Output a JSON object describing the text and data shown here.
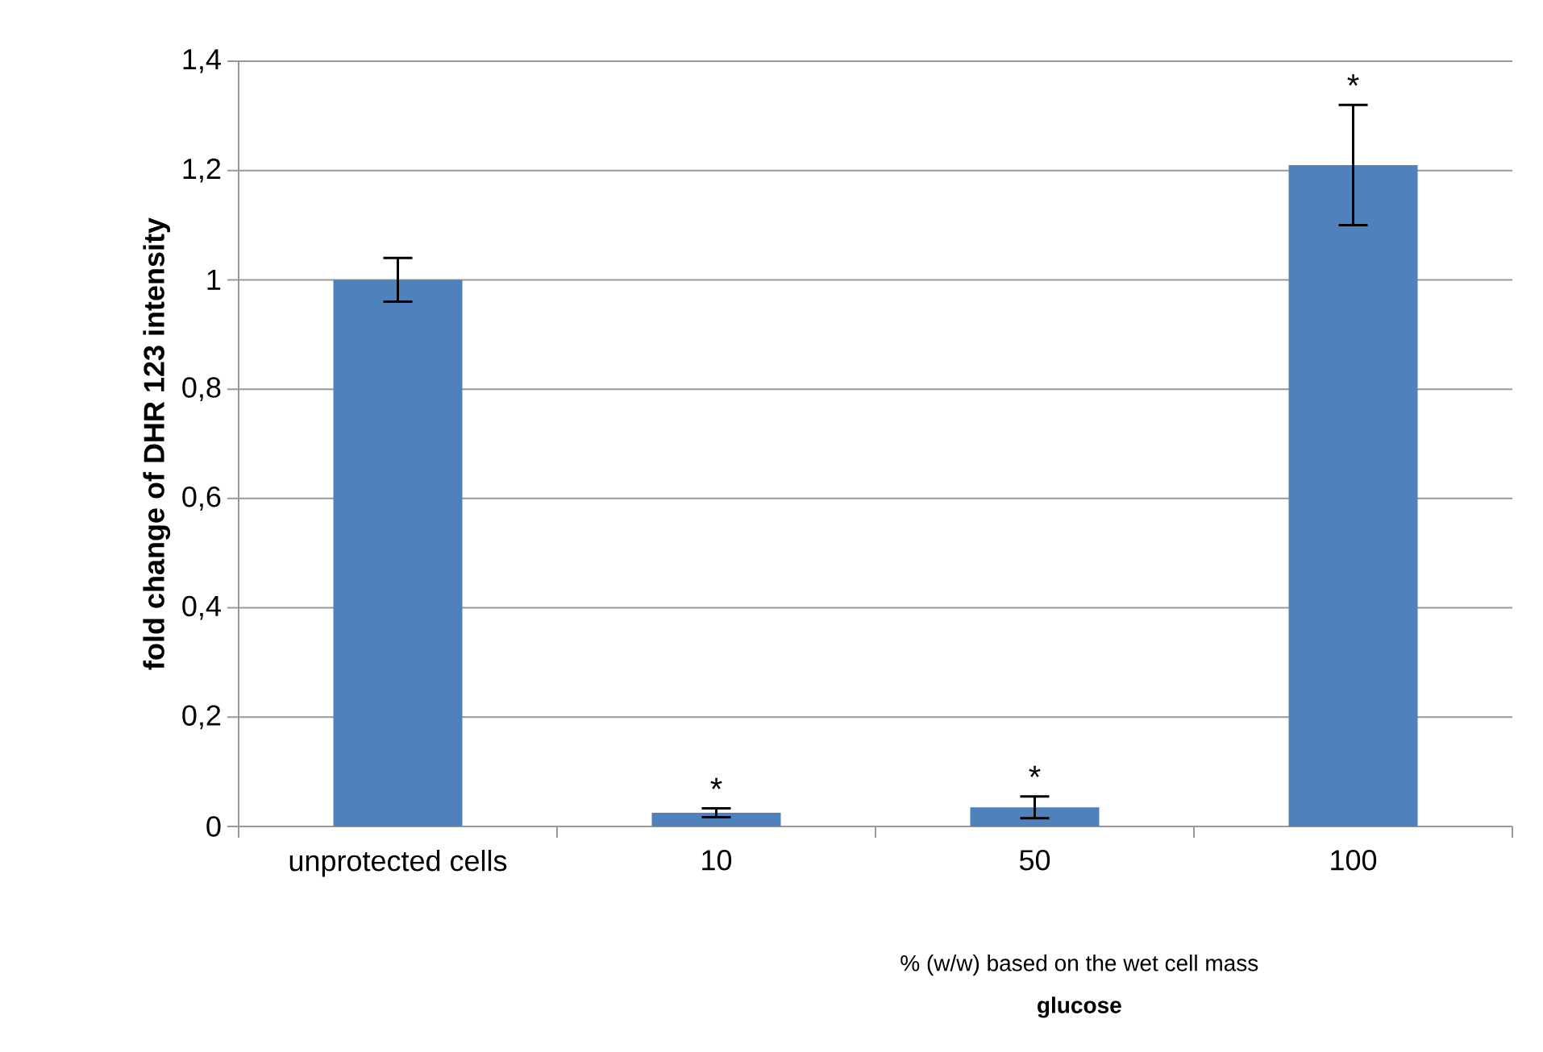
{
  "chart_data": {
    "type": "bar",
    "ylabel": "fold change of DHR 123 intensity",
    "xlabel": "% (w/w) based on the wet cell mass",
    "categories": [
      "unprotected cells",
      "10",
      "50",
      "100"
    ],
    "values": [
      1.0,
      0.025,
      0.035,
      1.21
    ],
    "errors": [
      0.04,
      0.008,
      0.02,
      [
        1.1,
        1.32
      ]
    ],
    "color": "#4f81bd",
    "ylim": [
      0,
      1.4
    ],
    "yticks": [
      0,
      {
        "value": 0.2,
        "label": "0,2"
      },
      {
        "value": 0.4,
        "label": "0,4"
      },
      {
        "value": 0.6,
        "label": "0,6"
      },
      {
        "value": 0.8,
        "label": "0,8"
      },
      1,
      {
        "value": 1.2,
        "label": "1,2"
      },
      {
        "value": 1.4,
        "label": "1,4"
      }
    ],
    "grid": "y",
    "annotations": [
      "glucose",
      {
        "text": "*",
        "x": "10",
        "y": 0.025
      },
      {
        "text": "*",
        "x": "50",
        "y": 0.035
      },
      {
        "text": "*",
        "x": "100",
        "y": 1.21
      }
    ]
  }
}
